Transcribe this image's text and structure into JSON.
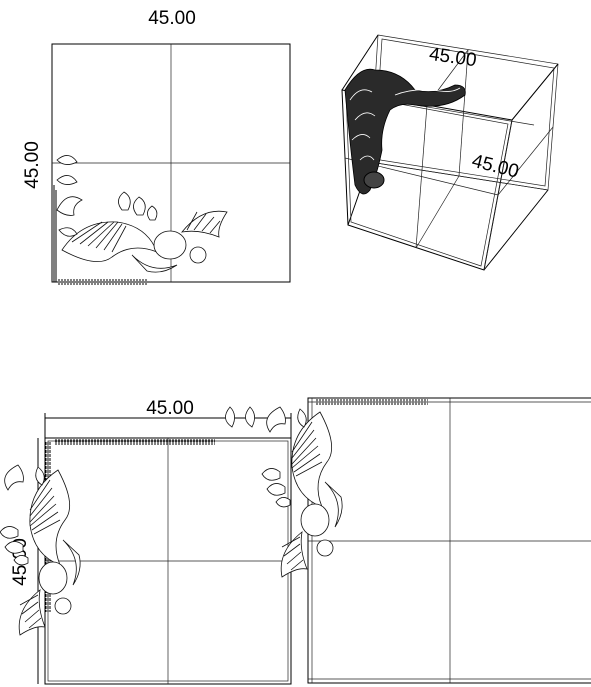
{
  "views": {
    "top_left": {
      "dim_top": "45.00",
      "dim_left": "45.00"
    },
    "top_right_3d": {
      "dim_top": "45.00",
      "dim_right": "45.00"
    },
    "bottom_left": {
      "dim_top": "45.00",
      "dim_left": "45.00"
    },
    "bottom_right": {}
  },
  "colors": {
    "line": "#000000",
    "background": "#ffffff"
  },
  "icons": [
    "ornamental-carving",
    "hatch-edge"
  ]
}
